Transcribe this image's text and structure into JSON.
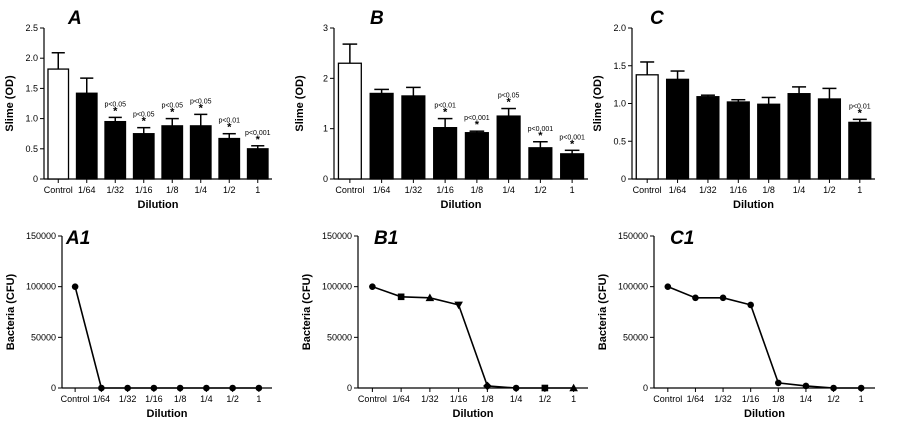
{
  "chart_data": [
    {
      "id": "A",
      "panel_label": "A",
      "type": "bar",
      "categories": [
        "Control",
        "1/64",
        "1/32",
        "1/16",
        "1/8",
        "1/4",
        "1/2",
        "1"
      ],
      "values": [
        1.82,
        1.42,
        0.95,
        0.75,
        0.88,
        0.88,
        0.67,
        0.5
      ],
      "errors": [
        0.27,
        0.25,
        0.07,
        0.1,
        0.12,
        0.19,
        0.08,
        0.05
      ],
      "annotations": [
        "",
        "",
        "p<0.05",
        "p<0.05",
        "p<0.05",
        "p<0.05",
        "p<0.01",
        "p<0.001"
      ],
      "ylim": [
        0,
        2.5
      ],
      "yticks": [
        "0",
        "0.5",
        "1.0",
        "1.5",
        "2.0",
        "2.5"
      ],
      "ytick_values": [
        0,
        0.5,
        1.0,
        1.5,
        2.0,
        2.5
      ],
      "xlabel": "Dilution",
      "ylabel": "Slime (OD)"
    },
    {
      "id": "B",
      "panel_label": "B",
      "type": "bar",
      "categories": [
        "Control",
        "1/64",
        "1/32",
        "1/16",
        "1/8",
        "1/4",
        "1/2",
        "1"
      ],
      "values": [
        2.3,
        1.7,
        1.65,
        1.02,
        0.92,
        1.25,
        0.62,
        0.5
      ],
      "errors": [
        0.38,
        0.08,
        0.17,
        0.18,
        0.03,
        0.15,
        0.12,
        0.07
      ],
      "annotations": [
        "",
        "",
        "",
        "p<0.01",
        "p<0.001",
        "p<0.05",
        "p<0.001",
        "p<0.001"
      ],
      "ylim": [
        0,
        3
      ],
      "yticks": [
        "0",
        "1",
        "2",
        "3"
      ],
      "ytick_values": [
        0,
        1,
        2,
        3
      ],
      "xlabel": "Dilution",
      "ylabel": "Slime (OD)"
    },
    {
      "id": "C",
      "panel_label": "C",
      "type": "bar",
      "categories": [
        "Control",
        "1/64",
        "1/32",
        "1/16",
        "1/8",
        "1/4",
        "1/2",
        "1"
      ],
      "values": [
        1.38,
        1.32,
        1.09,
        1.02,
        0.99,
        1.13,
        1.06,
        0.75
      ],
      "errors": [
        0.17,
        0.11,
        0.02,
        0.03,
        0.09,
        0.09,
        0.14,
        0.04
      ],
      "annotations": [
        "",
        "",
        "",
        "",
        "",
        "",
        "",
        "p<0.01"
      ],
      "ylim": [
        0,
        2.0
      ],
      "yticks": [
        "0",
        "0.5",
        "1.0",
        "1.5",
        "2.0"
      ],
      "ytick_values": [
        0,
        0.5,
        1.0,
        1.5,
        2.0
      ],
      "xlabel": "Dilution",
      "ylabel": "Slime (OD)"
    },
    {
      "id": "A1",
      "panel_label": "A1",
      "type": "line",
      "categories": [
        "Control",
        "1/64",
        "1/32",
        "1/16",
        "1/8",
        "1/4",
        "1/2",
        "1"
      ],
      "values": [
        100000,
        0,
        0,
        0,
        0,
        0,
        0,
        0
      ],
      "markers": [
        "circle",
        "circle",
        "circle",
        "circle",
        "circle",
        "circle",
        "circle",
        "circle"
      ],
      "ylim": [
        0,
        150000
      ],
      "yticks": [
        "0",
        "50000",
        "100000",
        "150000"
      ],
      "ytick_values": [
        0,
        50000,
        100000,
        150000
      ],
      "xlabel": "Dilution",
      "ylabel": "Bacteria (CFU)"
    },
    {
      "id": "B1",
      "panel_label": "B1",
      "type": "line",
      "categories": [
        "Control",
        "1/64",
        "1/32",
        "1/16",
        "1/8",
        "1/4",
        "1/2",
        "1"
      ],
      "values": [
        100000,
        90000,
        89000,
        82000,
        2000,
        0,
        0,
        0
      ],
      "markers": [
        "circle",
        "square",
        "triangle",
        "triangle-down",
        "diamond",
        "circle",
        "square",
        "triangle"
      ],
      "ylim": [
        0,
        150000
      ],
      "yticks": [
        "0",
        "50000",
        "100000",
        "150000"
      ],
      "ytick_values": [
        0,
        50000,
        100000,
        150000
      ],
      "xlabel": "Dilution",
      "ylabel": "Bacteria (CFU)"
    },
    {
      "id": "C1",
      "panel_label": "C1",
      "type": "line",
      "categories": [
        "Control",
        "1/64",
        "1/32",
        "1/16",
        "1/8",
        "1/4",
        "1/2",
        "1"
      ],
      "values": [
        100000,
        89000,
        89000,
        82000,
        5000,
        2000,
        0,
        0
      ],
      "markers": [
        "circle",
        "circle",
        "circle",
        "circle",
        "circle",
        "circle",
        "circle",
        "circle"
      ],
      "ylim": [
        0,
        150000
      ],
      "yticks": [
        "0",
        "50000",
        "100000",
        "150000"
      ],
      "ytick_values": [
        0,
        50000,
        100000,
        150000
      ],
      "xlabel": "Dilution",
      "ylabel": "Bacteria (CFU)"
    }
  ]
}
